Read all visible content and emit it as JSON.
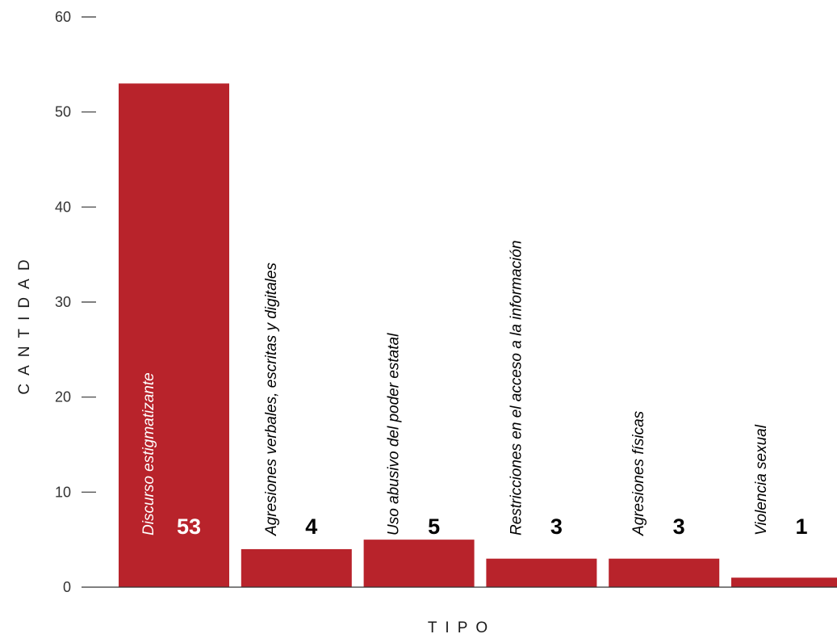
{
  "chart_data": {
    "type": "bar",
    "xlabel": "TIPO",
    "ylabel": "CANTIDAD",
    "ylim": [
      0,
      60
    ],
    "yticks": [
      0,
      10,
      20,
      30,
      40,
      50,
      60
    ],
    "categories": [
      "Discurso estigmatizante",
      "Agresiones verbales, escritas y digitales",
      "Uso abusivo del poder estatal",
      "Restricciones en el acceso a la información",
      "Agresiones físicas",
      "Violencia sexual"
    ],
    "values": [
      53,
      4,
      5,
      3,
      3,
      1
    ],
    "value_labels": [
      "53",
      "4",
      "5",
      "3",
      "3",
      "1"
    ],
    "grid": false,
    "legend": "none",
    "colors": {
      "bar": "#b8232b",
      "axis": "#333333",
      "label_inside": "#ffffff",
      "label_outside": "#000000"
    }
  }
}
